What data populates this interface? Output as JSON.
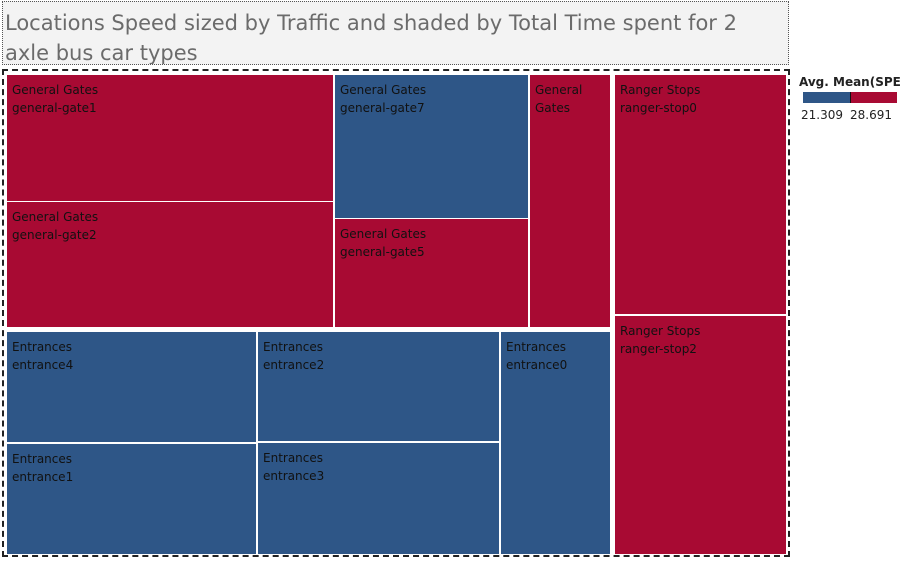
{
  "title": "Locations Speed sized by Traffic and shaded by Total Time spent for 2 axle bus car types",
  "legend": {
    "title": "Avg. Mean(SPE..",
    "min_label": "21.309",
    "max_label": "28.691"
  },
  "colors": {
    "low": "#2e5687",
    "high": "#a80a33"
  },
  "chart_data": {
    "type": "treemap",
    "title": "Locations Speed sized by Traffic and shaded by Total Time spent for 2 axle bus car types",
    "color_measure": "Avg. Mean(SPE..",
    "color_range": [
      21.309,
      28.691
    ],
    "groups": [
      {
        "name": "General Gates",
        "items": [
          {
            "category": "General Gates",
            "location": "general-gate1",
            "shade": "high"
          },
          {
            "category": "General Gates",
            "location": "general-gate2",
            "shade": "high"
          },
          {
            "category": "General Gates",
            "location": "general-gate7",
            "shade": "low"
          },
          {
            "category": "General Gates",
            "location": "general-gate5",
            "shade": "high"
          },
          {
            "category": "General Gates",
            "location": "",
            "shade": "high"
          }
        ]
      },
      {
        "name": "Entrances",
        "items": [
          {
            "category": "Entrances",
            "location": "entrance4",
            "shade": "low"
          },
          {
            "category": "Entrances",
            "location": "entrance2",
            "shade": "low"
          },
          {
            "category": "Entrances",
            "location": "entrance0",
            "shade": "low"
          },
          {
            "category": "Entrances",
            "location": "entrance1",
            "shade": "low"
          },
          {
            "category": "Entrances",
            "location": "entrance3",
            "shade": "low"
          }
        ]
      },
      {
        "name": "Ranger Stops",
        "items": [
          {
            "category": "Ranger Stops",
            "location": "ranger-stop0",
            "shade": "high"
          },
          {
            "category": "Ranger Stops",
            "location": "ranger-stop2",
            "shade": "high"
          }
        ]
      }
    ]
  }
}
